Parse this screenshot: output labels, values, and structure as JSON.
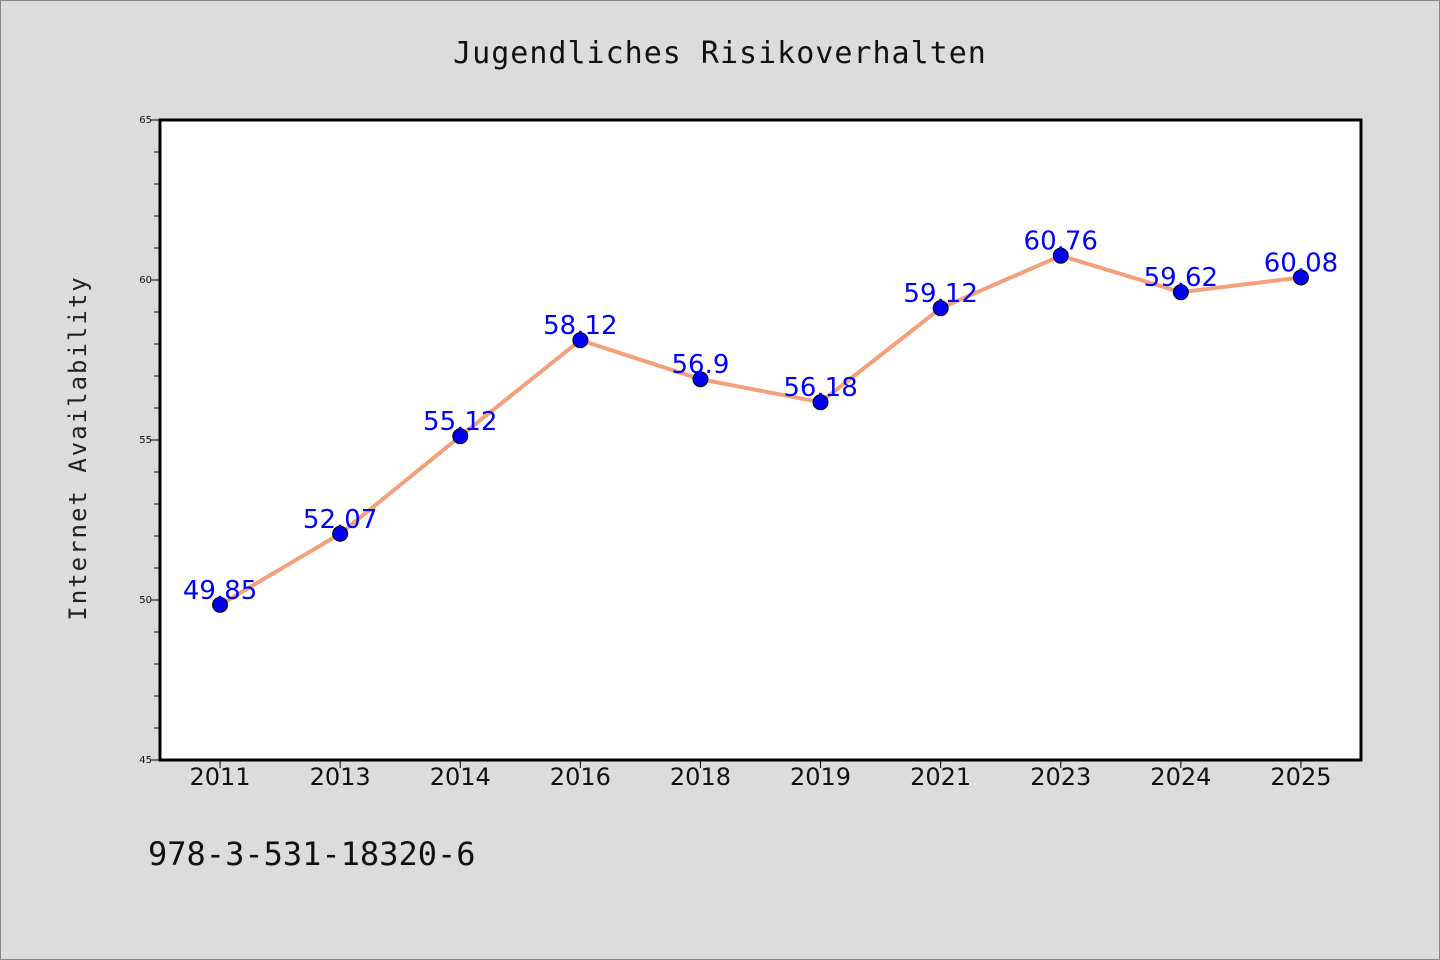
{
  "chart_data": {
    "type": "line",
    "title": "Jugendliches Risikoverhalten",
    "xlabel": "",
    "ylabel": "Internet Availability",
    "categories": [
      "2011",
      "2013",
      "2014",
      "2016",
      "2018",
      "2019",
      "2021",
      "2023",
      "2024",
      "2025"
    ],
    "series": [
      {
        "values": [
          49.85,
          52.07,
          55.12,
          58.12,
          56.9,
          56.18,
          59.12,
          60.76,
          59.62,
          60.08
        ],
        "labels": [
          "49.85",
          "52.07",
          "55.12",
          "58.12",
          "56.9",
          "56.18",
          "59.12",
          "60.76",
          "59.62",
          "60.08"
        ],
        "line_color": "#f4a07a",
        "marker_color": "#0000ee"
      }
    ],
    "ylim": [
      45,
      65
    ],
    "yticks": [
      "45",
      "50",
      "55",
      "60",
      "65"
    ],
    "grid": false,
    "label_color": "#0000ff"
  },
  "footer_text": "978-3-531-18320-6",
  "colors": {
    "background": "#dcdcdc",
    "plot_background": "#ffffff"
  }
}
